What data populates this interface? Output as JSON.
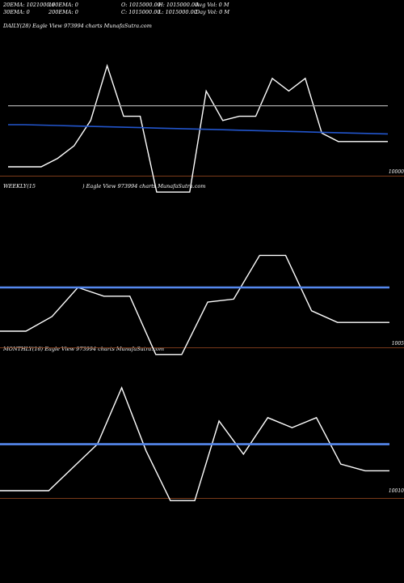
{
  "header": {
    "ema20": "20EMA: 1021000.6",
    "ema100": "100EMA: 0",
    "open": "O: 1015000.00",
    "high": "H: 1015000.00",
    "avgvol": "Avg Vol: 0  M",
    "ema30": "30EMA: 0",
    "ema200": "200EMA: 0",
    "close": "C: 1015000.00",
    "low": "L: 1015000.00",
    "dayvol": "Day Vol: 0  M"
  },
  "chart_data": [
    {
      "type": "line",
      "label": "DAILY(28) Eagle   View  973994 charts MunafaSutra.com",
      "tick_label": "10000",
      "series": [
        {
          "name": "price",
          "color": "#ffffff",
          "values": [
            0,
            0,
            0,
            2,
            5,
            11,
            24,
            12,
            12,
            -6,
            -6,
            -6,
            18,
            11,
            12,
            12,
            21,
            18,
            21,
            8,
            6,
            6,
            6,
            6
          ]
        },
        {
          "name": "ema",
          "color": "#2255cc",
          "values": [
            10,
            10,
            9.9,
            9.8,
            9.7,
            9.6,
            9.5,
            9.4,
            9.3,
            9.2,
            9.1,
            9,
            8.9,
            8.8,
            8.7,
            8.6,
            8.5,
            8.4,
            8.3,
            8.2,
            8.1,
            8,
            7.9,
            7.8
          ]
        },
        {
          "name": "level",
          "color": "#aaaaaa",
          "values": [
            14.5,
            14.5
          ]
        }
      ]
    },
    {
      "type": "line",
      "label": "WEEKLY(15",
      "label2": ") Eagle   View  973994 charts MunafaSutra.com",
      "tick_label": "1005",
      "series": [
        {
          "name": "price",
          "color": "#ffffff",
          "values": [
            0,
            0,
            5,
            15,
            12,
            12,
            -8,
            -8,
            10,
            11,
            26,
            26,
            7,
            3,
            3,
            3
          ]
        },
        {
          "name": "ema",
          "color": "#5588ee",
          "values": [
            15,
            15
          ]
        }
      ]
    },
    {
      "type": "line",
      "label": "MONTHLY(16) Eagle   View  973994 charts MunafaSutra.com",
      "tick_label": "10010",
      "series": [
        {
          "name": "price",
          "color": "#ffffff",
          "values": [
            0,
            0,
            0,
            7,
            14,
            31,
            12,
            -3,
            -3,
            21,
            11,
            22,
            19,
            22,
            8,
            6,
            6
          ]
        },
        {
          "name": "ema",
          "color": "#5588ee",
          "values": [
            14,
            14
          ]
        }
      ]
    }
  ]
}
